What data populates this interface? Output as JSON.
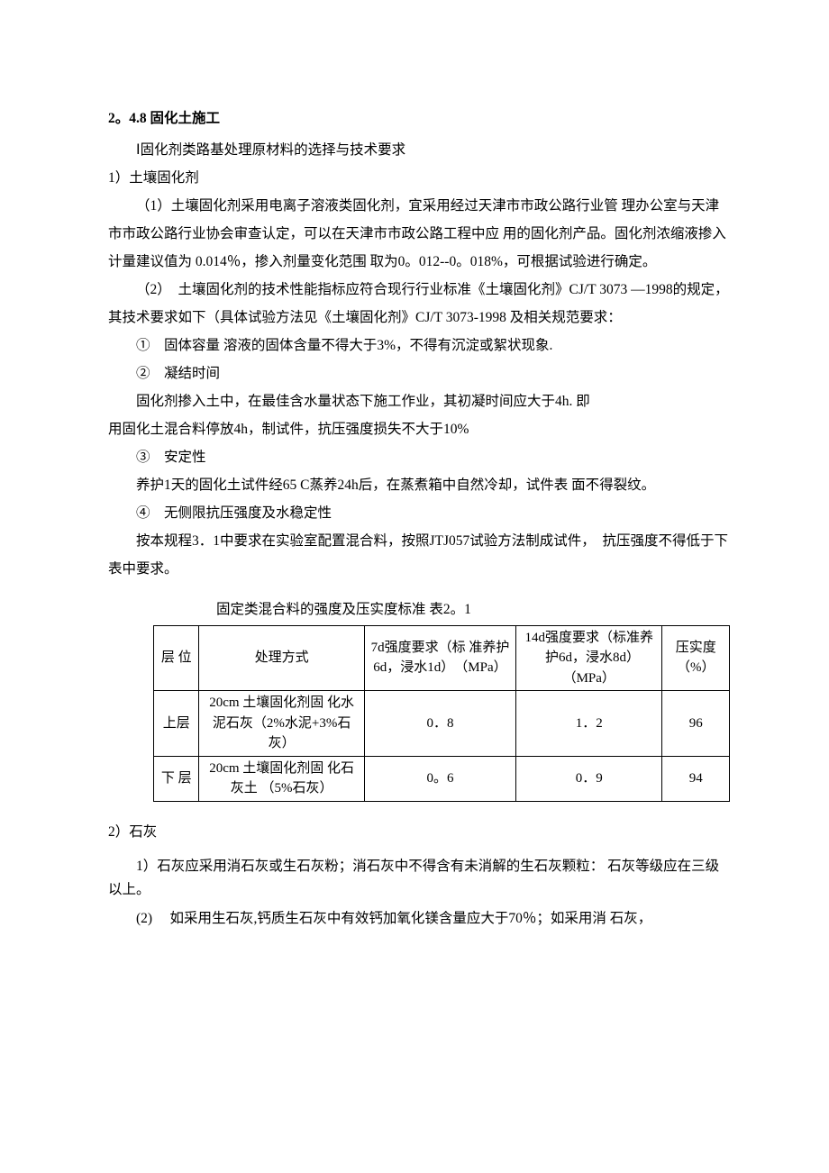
{
  "doc": {
    "heading": "2。4.8 固化土施工",
    "p1": "Ⅰ固化剂类路基处理原材料的选择与技术要求",
    "p2": "1）土壤固化剂",
    "p3": "（1）土壤固化剂采用电离子溶液类固化剂，宜采用经过天津市市政公路行业管 理办公室与天津市市政公路行业协会审查认定，可以在天津市市政公路工程中应 用的固化剂产品。固化剂浓缩液掺入计量建议值为 0.014％，掺入剂量变化范围 取为0。012--0。018%，可根据试验进行确定。",
    "p4": "（2）　土壤固化剂的技术性能指标应符合现行行业标准《土壤固化剂》CJ/T 3073 —1998的规定，其技术要求如下（具体试验方法见《土壤固化剂》CJ/T 3073-1998 及相关规范要求：",
    "p5": "①　固体容量 溶液的固体含量不得大于3%，不得有沉淀或絮状现象.",
    "p6": "②　凝结时间",
    "p7": "固化剂掺入土中，在最佳含水量状态下施工作业，其初凝时间应大于4h. 即",
    "p8": "用固化土混合料停放4h，制试件，抗压强度损失不大于10%",
    "p9": "③　安定性",
    "p10": "养护1天的固化土试件经65 C蒸养24h后，在蒸煮箱中自然冷却，试件表 面不得裂纹。",
    "p11": "④　无侧限抗压强度及水稳定性",
    "p12": "按本规程3．1中要求在实验室配置混合料，按照JTJ057试验方法制成试件，　抗压强度不得低于下表中要求。",
    "table_caption": "固定类混合料的强度及压实度标准 表2。1",
    "table": {
      "head": {
        "c1": "层 位",
        "c2": "处理方式",
        "c3": "7d强度要求（标 准养护6d，浸水1d）　（MPa）",
        "c4": "14d强度要求（标准养护6d，浸水8d）　（MPa）",
        "c5": "压实度（%）"
      },
      "r1": {
        "c1": "上层",
        "c2": "20cm 土壤固化剂固 化水泥石灰（2%水泥+3%石灰）",
        "c3": "0．8",
        "c4": "1．2",
        "c5": "96"
      },
      "r2": {
        "c1": "下 层",
        "c2": "20cm 土壤固化剂固 化石灰土 （5%石灰）",
        "c3": "0。6",
        "c4": "0．9",
        "c5": "94"
      }
    },
    "s2": "2）石灰",
    "s2p1": "1）石灰应采用消石灰或生石灰粉；消石灰中不得含有未消解的生石灰颗粒： 石灰等级应在三级以上。",
    "s2p2": "(2)　 如采用生石灰,钙质生石灰中有效钙加氧化镁含量应大于70％；如采用消 石灰，"
  }
}
